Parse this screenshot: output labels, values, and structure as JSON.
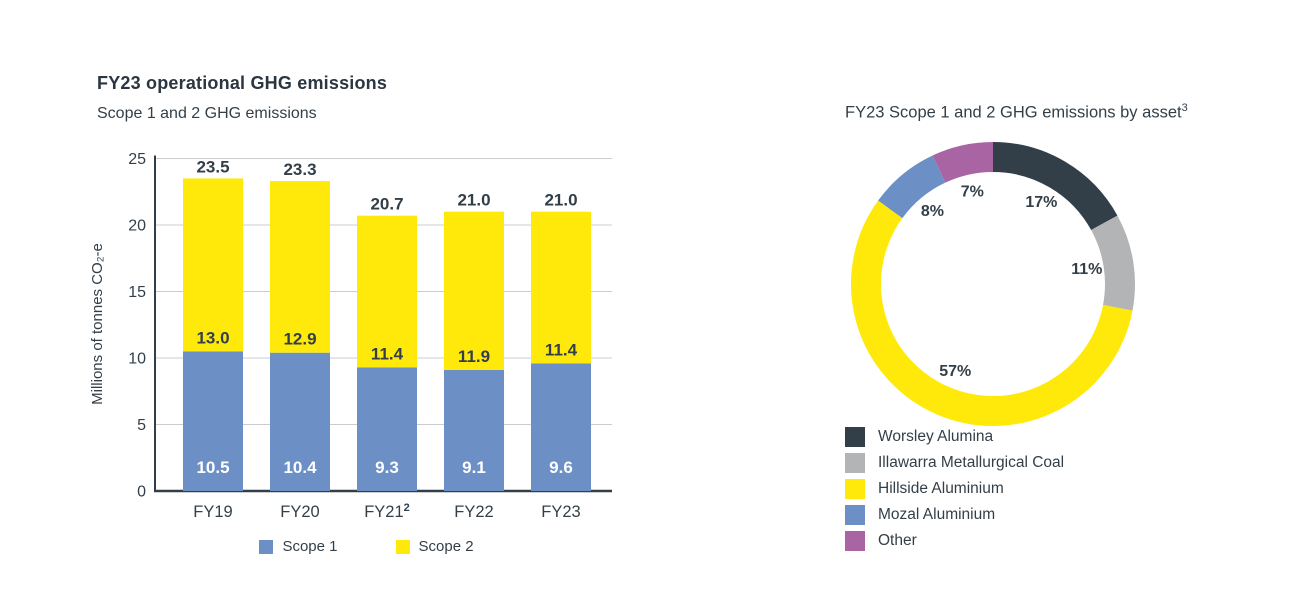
{
  "chart_data": [
    {
      "type": "bar",
      "stacked": true,
      "title": "FY23 operational GHG emissions",
      "subtitle": "Scope 1 and 2 GHG emissions",
      "categories": [
        "FY19",
        "FY20",
        "FY21",
        "FY22",
        "FY23"
      ],
      "category_superscripts": [
        "",
        "",
        "2",
        "",
        ""
      ],
      "series": [
        {
          "name": "Scope 1",
          "color": "#6C8FC6",
          "label_color": "#FFFFFF",
          "values": [
            10.5,
            10.4,
            9.3,
            9.1,
            9.6
          ],
          "value_labels": [
            "10.5",
            "10.4",
            "9.3",
            "9.1",
            "9.6"
          ]
        },
        {
          "name": "Scope 2",
          "color": "#FFE90A",
          "label_color": "#333F48",
          "values": [
            13.0,
            12.9,
            11.4,
            11.9,
            11.4
          ],
          "value_labels": [
            "13.0",
            "12.9",
            "11.4",
            "11.9",
            "11.4"
          ]
        }
      ],
      "totals": [
        23.5,
        23.3,
        20.7,
        21.0,
        21.0
      ],
      "total_labels": [
        "23.5",
        "23.3",
        "20.7",
        "21.0",
        "21.0"
      ],
      "ylabel": "Millions of tonnes CO₂-e",
      "xlabel": "",
      "ylim": [
        0,
        25
      ],
      "yticks": [
        0,
        5,
        10,
        15,
        20,
        25
      ],
      "grid": true,
      "grid_color": "#CACDD0",
      "axis_color": "#333F48",
      "legend_position": "bottom"
    },
    {
      "type": "donut",
      "title": "FY23 Scope 1 and 2 GHG emissions by asset",
      "title_superscript": "3",
      "start_angle_deg": 0,
      "direction": "clockwise",
      "slices": [
        {
          "label": "Worsley Alumina",
          "value": 17,
          "pct_label": "17%",
          "color": "#333F48"
        },
        {
          "label": "Illawarra Metallurgical Coal",
          "value": 11,
          "pct_label": "11%",
          "color": "#B2B4B6"
        },
        {
          "label": "Hillside Aluminium",
          "value": 57,
          "pct_label": "57%",
          "color": "#FFE90A"
        },
        {
          "label": "Mozal Aluminium",
          "value": 8,
          "pct_label": "8%",
          "color": "#6C8FC6"
        },
        {
          "label": "Other",
          "value": 7,
          "pct_label": "7%",
          "color": "#A964A3"
        }
      ],
      "legend_position": "bottom-left"
    }
  ]
}
